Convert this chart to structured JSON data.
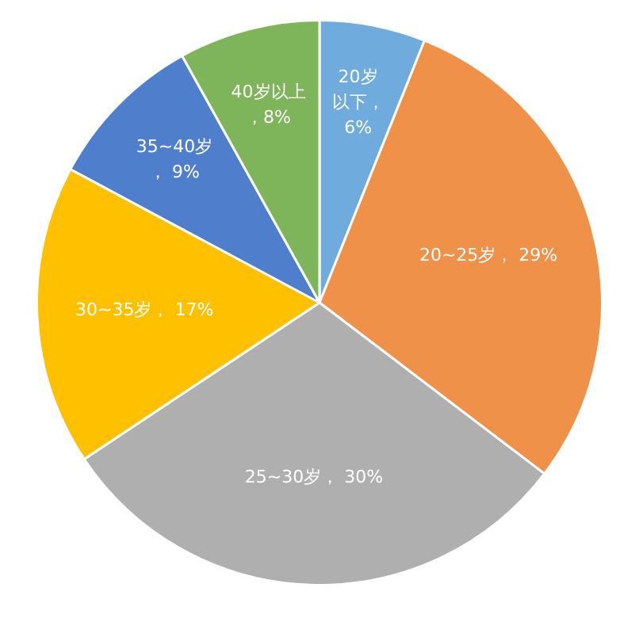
{
  "chart_data": {
    "type": "pie",
    "categories": [
      "20岁以下",
      "20~25岁",
      "25~30岁",
      "30~35岁",
      "35~40岁",
      "40岁以上"
    ],
    "values": [
      6,
      29,
      30,
      17,
      9,
      8
    ],
    "colors": [
      "#6fabdd",
      "#f0914a",
      "#b0afb0",
      "#ffc000",
      "#4f7fcc",
      "#7fb55a"
    ],
    "value_labels": [
      "，6%",
      "， 29%",
      "， 30%",
      "， 17%",
      "， 9%",
      "，8%"
    ],
    "legend": false
  }
}
